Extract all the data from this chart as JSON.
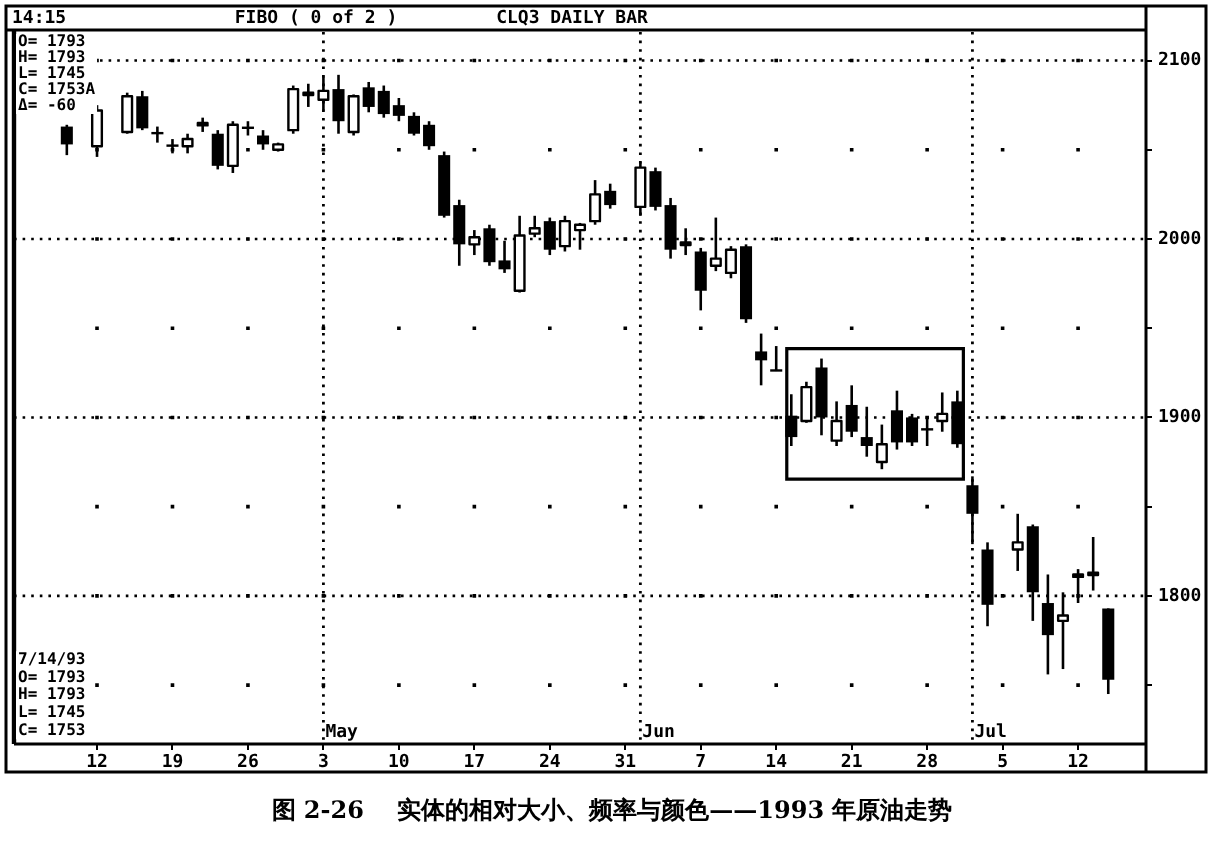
{
  "chart_data": {
    "type": "candlestick",
    "title": "CLQ3 DAILY BAR",
    "categories": [
      null,
      null,
      null,
      null,
      null,
      "12",
      null,
      null,
      null,
      null,
      "19",
      null,
      null,
      null,
      null,
      "26",
      null,
      null,
      null,
      null,
      "3",
      null,
      null,
      null,
      null,
      "10",
      null,
      null,
      null,
      null,
      "17",
      null,
      null,
      null,
      null,
      "24",
      null,
      null,
      null,
      null,
      "31",
      null,
      null,
      null,
      null,
      "7",
      null,
      null,
      null,
      null,
      "14",
      null,
      null,
      null,
      null,
      "21",
      null,
      null,
      null,
      null,
      "28",
      null,
      null,
      null,
      null,
      "5",
      null,
      null,
      null,
      null,
      "12",
      null,
      null,
      null,
      null
    ],
    "ohlc": [
      null,
      null,
      null,
      [
        2063,
        2064,
        2047,
        2053
      ],
      null,
      [
        2052,
        2075,
        2046,
        2072
      ],
      null,
      [
        2060,
        2082,
        2059,
        2080
      ],
      [
        2080,
        2083,
        2061,
        2062
      ],
      [
        2060,
        2063,
        2054,
        2059
      ],
      [
        2053,
        2056,
        2048,
        2052
      ],
      [
        2052,
        2059,
        2048,
        2056
      ],
      [
        2064,
        2068,
        2060,
        2065
      ],
      [
        2059,
        2061,
        2039,
        2041
      ],
      [
        2041,
        2066,
        2037,
        2064
      ],
      [
        2063,
        2066,
        2058,
        2062
      ],
      [
        2058,
        2061,
        2050,
        2053
      ],
      [
        2050,
        2054,
        2049,
        2053
      ],
      [
        2061,
        2086,
        2059,
        2084
      ],
      [
        2081,
        2087,
        2074,
        2082
      ],
      [
        2078,
        2091,
        2072,
        2083
      ],
      [
        2084,
        2092,
        2059,
        2066
      ],
      [
        2060,
        2081,
        2058,
        2080
      ],
      [
        2085,
        2088,
        2071,
        2074
      ],
      [
        2083,
        2086,
        2068,
        2070
      ],
      [
        2075,
        2079,
        2066,
        2069
      ],
      [
        2069,
        2071,
        2058,
        2059
      ],
      [
        2064,
        2066,
        2050,
        2052
      ],
      [
        2047,
        2049,
        2012,
        2013
      ],
      [
        2019,
        2022,
        1985,
        1997
      ],
      [
        1997,
        2005,
        1991,
        2001
      ],
      [
        2006,
        2008,
        1985,
        1987
      ],
      [
        1988,
        1999,
        1981,
        1983
      ],
      [
        1971,
        2013,
        1970,
        2002
      ],
      [
        2003,
        2013,
        2001,
        2006
      ],
      [
        2010,
        2012,
        1991,
        1994
      ],
      [
        1996,
        2013,
        1993,
        2010
      ],
      [
        2005,
        2009,
        1994,
        2008
      ],
      [
        2010,
        2033,
        2008,
        2025
      ],
      [
        2027,
        2031,
        2017,
        2019
      ],
      null,
      [
        2018,
        2043,
        2013,
        2040
      ],
      [
        2038,
        2040,
        2016,
        2018
      ],
      [
        2019,
        2023,
        1989,
        1994
      ],
      [
        1997,
        2006,
        1991,
        1998
      ],
      [
        1993,
        1995,
        1960,
        1971
      ],
      [
        1985,
        2012,
        1982,
        1989
      ],
      [
        1981,
        1996,
        1978,
        1994
      ],
      [
        1996,
        1997,
        1953,
        1955
      ],
      [
        1937,
        1947,
        1918,
        1932
      ],
      [
        1927,
        1940,
        1926,
        1926
      ],
      [
        1901,
        1913,
        1884,
        1889
      ],
      [
        1898,
        1920,
        1897,
        1917
      ],
      [
        1928,
        1933,
        1890,
        1900
      ],
      [
        1887,
        1909,
        1884,
        1898
      ],
      [
        1907,
        1918,
        1889,
        1892
      ],
      [
        1889,
        1906,
        1878,
        1884
      ],
      [
        1875,
        1896,
        1871,
        1885
      ],
      [
        1904,
        1915,
        1882,
        1886
      ],
      [
        1900,
        1902,
        1884,
        1886
      ],
      [
        1894,
        1900,
        1884,
        1893
      ],
      [
        1898,
        1914,
        1892,
        1902
      ],
      [
        1909,
        1915,
        1883,
        1885
      ],
      [
        1862,
        1867,
        1829,
        1846
      ],
      [
        1826,
        1830,
        1783,
        1795
      ],
      null,
      [
        1826,
        1846,
        1814,
        1830
      ],
      [
        1839,
        1840,
        1786,
        1802
      ],
      [
        1796,
        1812,
        1756,
        1778
      ],
      [
        1786,
        1802,
        1759,
        1789
      ],
      [
        1811,
        1815,
        1796,
        1812
      ],
      [
        1812,
        1833,
        1803,
        1813
      ],
      [
        1793,
        1793,
        1745,
        1753
      ],
      null,
      null
    ],
    "ylim": [
      1717,
      2116
    ],
    "yticks": [
      {
        "value": 1750,
        "label": null
      },
      1800,
      {
        "value": 1850,
        "label": null
      },
      1900,
      {
        "value": 1950,
        "label": null
      },
      2000,
      {
        "value": 2050,
        "label": null
      },
      2100
    ],
    "grid": true,
    "annotations": [
      "14:15",
      "FIBO ( 0 of 2 )",
      "O= 1793\nH= 1793\nL= 1745\nC= 1753A\nΔ= -60",
      "7/14/93\nO= 1793\nH= 1793\nL= 1745\nC= 1753",
      "May",
      "Jun",
      "Jul",
      "图 2-26    实体的相对大小、频率与颜色——1993 年原油走势"
    ]
  }
}
